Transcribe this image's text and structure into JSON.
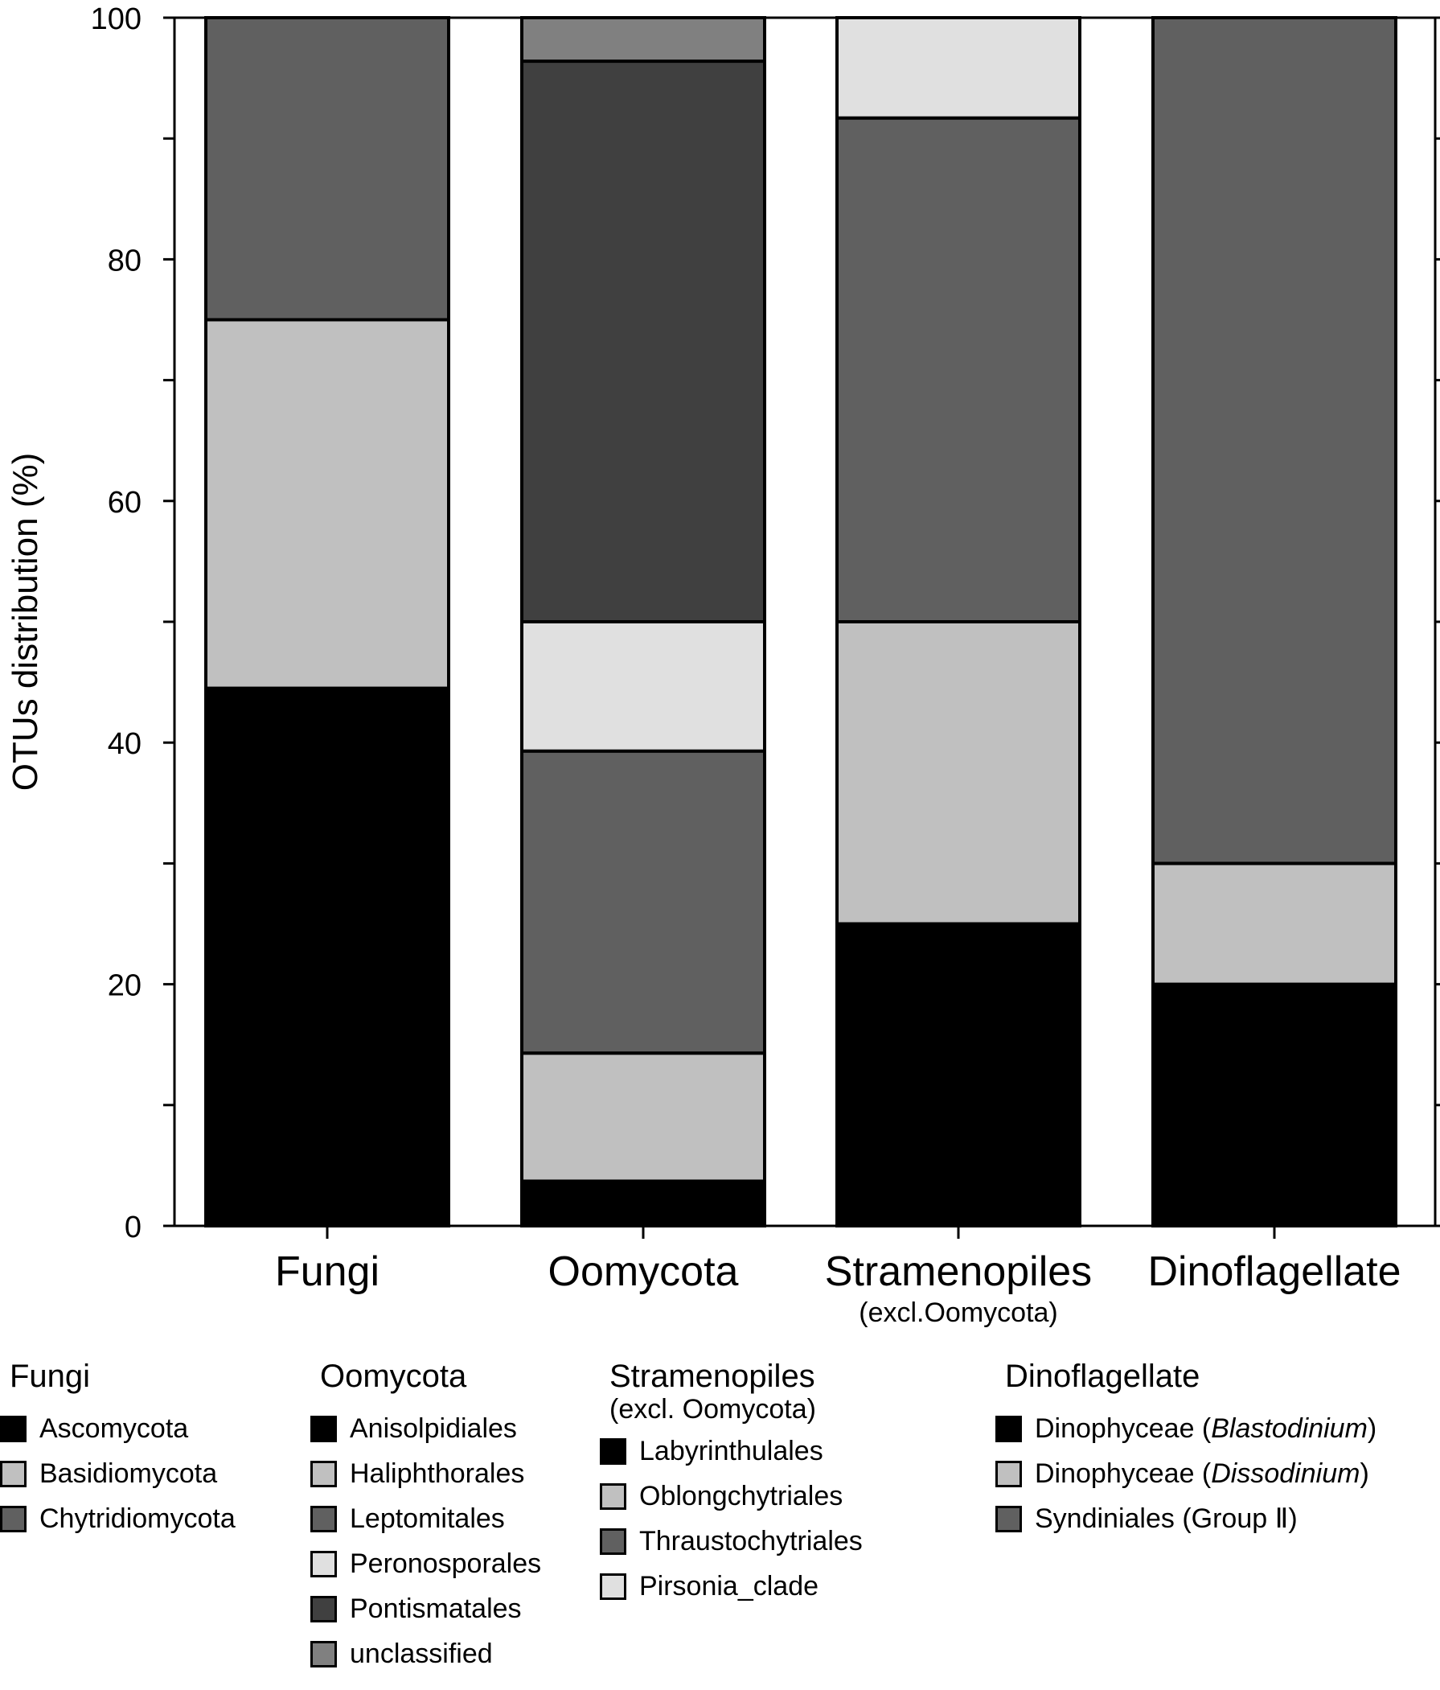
{
  "chart_data": {
    "type": "bar",
    "stacked": true,
    "ylabel": "OTUs distribution (%)",
    "ylim": [
      0,
      100
    ],
    "y_ticks": [
      "0",
      "20",
      "40",
      "60",
      "80",
      "100"
    ],
    "categories": [
      {
        "label": "Fungi",
        "sublabel": ""
      },
      {
        "label": "Oomycota",
        "sublabel": ""
      },
      {
        "label": "Stramenopiles",
        "sublabel": "(excl.Oomycota)"
      },
      {
        "label": "Dinoflagellate",
        "sublabel": ""
      }
    ],
    "bars": [
      {
        "category": "Fungi",
        "segments": [
          {
            "name": "Ascomycota",
            "value": 44.5,
            "color": "#000000"
          },
          {
            "name": "Basidiomycota",
            "value": 30.5,
            "color": "#c0c0c0"
          },
          {
            "name": "Chytridiomycota",
            "value": 25,
            "color": "#606060"
          }
        ]
      },
      {
        "category": "Oomycota",
        "segments": [
          {
            "name": "Anisolpidiales",
            "value": 3.7,
            "color": "#000000"
          },
          {
            "name": "Haliphthorales",
            "value": 10.6,
            "color": "#c0c0c0"
          },
          {
            "name": "Leptomitales",
            "value": 25,
            "color": "#606060"
          },
          {
            "name": "Peronosporales",
            "value": 10.7,
            "color": "#e0e0e0"
          },
          {
            "name": "Pontismatales",
            "value": 46.4,
            "color": "#404040"
          },
          {
            "name": "unclassified",
            "value": 3.6,
            "color": "#808080"
          }
        ]
      },
      {
        "category": "Stramenopiles",
        "segments": [
          {
            "name": "Labyrinthulales",
            "value": 25,
            "color": "#000000"
          },
          {
            "name": "Oblongchytriales",
            "value": 25,
            "color": "#c0c0c0"
          },
          {
            "name": "Thraustochytriales",
            "value": 41.7,
            "color": "#606060"
          },
          {
            "name": "Pirsonia_clade",
            "value": 8.3,
            "color": "#e0e0e0"
          }
        ]
      },
      {
        "category": "Dinoflagellate",
        "segments": [
          {
            "name": "Dinophyceae (Blastodinium)",
            "value": 20,
            "color": "#000000"
          },
          {
            "name": "Dinophyceae (Dissodinium)",
            "value": 10,
            "color": "#c0c0c0"
          },
          {
            "name": "Syndiniales (Group II)",
            "value": 70,
            "color": "#606060"
          }
        ]
      }
    ],
    "legend": {
      "placement": "bottom",
      "groups": [
        {
          "title": "Fungi",
          "subtitle": "",
          "items": [
            {
              "pre": "Ascomycota",
              "italic": "",
              "post": "",
              "color": "#000000"
            },
            {
              "pre": "Basidiomycota",
              "italic": "",
              "post": "",
              "color": "#c0c0c0"
            },
            {
              "pre": "Chytridiomycota",
              "italic": "",
              "post": "",
              "color": "#606060"
            }
          ]
        },
        {
          "title": "Oomycota",
          "subtitle": "",
          "items": [
            {
              "pre": "Anisolpidiales",
              "italic": "",
              "post": "",
              "color": "#000000"
            },
            {
              "pre": "Haliphthorales",
              "italic": "",
              "post": "",
              "color": "#c0c0c0"
            },
            {
              "pre": "Leptomitales",
              "italic": "",
              "post": "",
              "color": "#606060"
            },
            {
              "pre": "Peronosporales",
              "italic": "",
              "post": "",
              "color": "#e0e0e0"
            },
            {
              "pre": "Pontismatales",
              "italic": "",
              "post": "",
              "color": "#404040"
            },
            {
              "pre": "unclassified",
              "italic": "",
              "post": "",
              "color": "#808080"
            }
          ]
        },
        {
          "title": "Stramenopiles",
          "subtitle": "(excl. Oomycota)",
          "items": [
            {
              "pre": "Labyrinthulales",
              "italic": "",
              "post": "",
              "color": "#000000"
            },
            {
              "pre": "Oblongchytriales",
              "italic": "",
              "post": "",
              "color": "#c0c0c0"
            },
            {
              "pre": "Thraustochytriales",
              "italic": "",
              "post": "",
              "color": "#606060"
            },
            {
              "pre": "Pirsonia_clade",
              "italic": "",
              "post": "",
              "color": "#e0e0e0"
            }
          ]
        },
        {
          "title": "Dinoflagellate",
          "subtitle": "",
          "items": [
            {
              "pre": "Dinophyceae (",
              "italic": "Blastodinium",
              "post": ")",
              "color": "#000000"
            },
            {
              "pre": "Dinophyceae (",
              "italic": "Dissodinium",
              "post": ")",
              "color": "#c0c0c0"
            },
            {
              "pre": "Syndiniales (Group Ⅱ)",
              "italic": "",
              "post": "",
              "color": "#606060"
            }
          ]
        }
      ]
    }
  }
}
